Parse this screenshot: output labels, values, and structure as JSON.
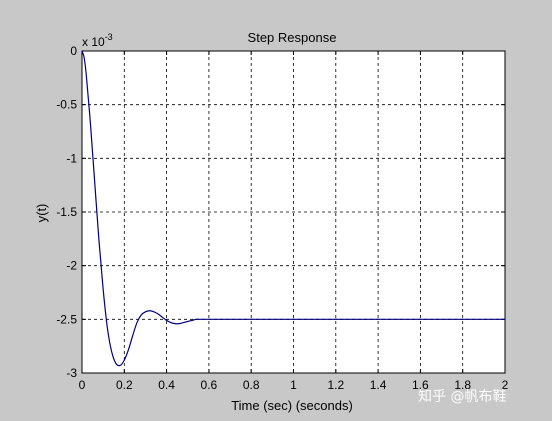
{
  "chart_data": {
    "type": "line",
    "title": "Step Response",
    "xlabel": "Time (sec) (seconds)",
    "ylabel": "y(t)",
    "y_multiplier": "x 10",
    "y_multiplier_exponent": "-3",
    "xlim": [
      0,
      2
    ],
    "ylim": [
      -3,
      0
    ],
    "xticks": [
      0,
      0.2,
      0.4,
      0.6,
      0.8,
      1,
      1.2,
      1.4,
      1.6,
      1.8,
      2
    ],
    "xtick_labels": [
      "0",
      "0.2",
      "0.4",
      "0.6",
      "0.8",
      "1",
      "1.2",
      "1.4",
      "1.6",
      "1.8",
      "2"
    ],
    "yticks": [
      0,
      -0.5,
      -1,
      -1.5,
      -2,
      -2.5,
      -3
    ],
    "ytick_labels": [
      "0",
      "-0.5",
      "-1",
      "-1.5",
      "-2",
      "-2.5",
      "-3"
    ],
    "grid": true,
    "series": [
      {
        "color": "#000080",
        "x": [
          0,
          0.01,
          0.02,
          0.04,
          0.06,
          0.08,
          0.1,
          0.12,
          0.14,
          0.16,
          0.18,
          0.2,
          0.22,
          0.24,
          0.26,
          0.28,
          0.3,
          0.32,
          0.34,
          0.36,
          0.38,
          0.4,
          0.42,
          0.44,
          0.46,
          0.48,
          0.5,
          0.52,
          0.54,
          0.56,
          0.58,
          0.6,
          0.8,
          1.0,
          1.2,
          1.4,
          1.6,
          1.8,
          2.0
        ],
        "y": [
          0,
          -0.06,
          -0.22,
          -0.68,
          -1.22,
          -1.76,
          -2.22,
          -2.58,
          -2.8,
          -2.91,
          -2.93,
          -2.88,
          -2.78,
          -2.65,
          -2.53,
          -2.46,
          -2.43,
          -2.42,
          -2.43,
          -2.45,
          -2.48,
          -2.51,
          -2.53,
          -2.54,
          -2.54,
          -2.53,
          -2.52,
          -2.51,
          -2.5,
          -2.5,
          -2.5,
          -2.5,
          -2.5,
          -2.5,
          -2.5,
          -2.5,
          -2.5,
          -2.5,
          -2.5
        ]
      }
    ]
  },
  "watermark": "知乎 @帆布鞋"
}
